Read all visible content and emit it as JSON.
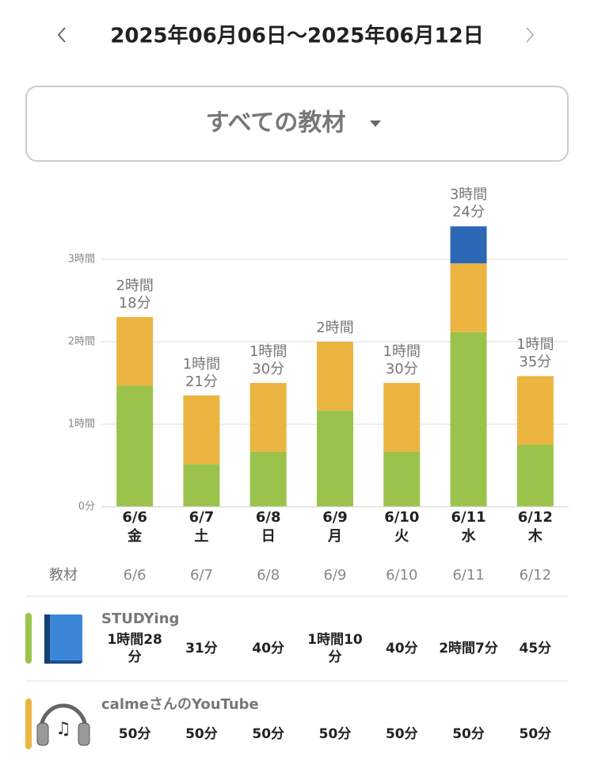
{
  "header": {
    "title": "2025年06月06日〜2025年06月12日"
  },
  "filter": {
    "label": "すべての教材"
  },
  "chart_data": {
    "type": "bar",
    "stacked": true,
    "categories": [
      "6/6",
      "6/7",
      "6/8",
      "6/9",
      "6/10",
      "6/11",
      "6/12"
    ],
    "weekdays": [
      "金",
      "土",
      "日",
      "月",
      "火",
      "水",
      "木"
    ],
    "ylim": [
      0,
      240
    ],
    "yticks": [
      {
        "value": 0,
        "label": "0分"
      },
      {
        "value": 60,
        "label": "1時間"
      },
      {
        "value": 120,
        "label": "2時間"
      },
      {
        "value": 180,
        "label": "3時間"
      }
    ],
    "grid": true,
    "series": [
      {
        "name": "STUDYing",
        "color": "#9bc34b",
        "values": [
          88,
          31,
          40,
          70,
          40,
          127,
          45
        ],
        "value_labels": [
          "1時間28分",
          "31分",
          "40分",
          "1時間10分",
          "40分",
          "2時間7分",
          "45分"
        ]
      },
      {
        "name": "calmeさんのYouTube",
        "color": "#ecb441",
        "values": [
          50,
          50,
          50,
          50,
          50,
          50,
          50
        ],
        "value_labels": [
          "50分",
          "50分",
          "50分",
          "50分",
          "50分",
          "50分",
          "50分"
        ]
      },
      {
        "color": "#2b67b4",
        "values": [
          null,
          null,
          null,
          null,
          null,
          27,
          null
        ]
      }
    ],
    "totals": {
      "values": [
        138,
        81,
        90,
        120,
        90,
        204,
        95
      ],
      "value_labels": [
        "2時間18分",
        "1時間21分",
        "1時間30分",
        "2時間",
        "1時間30分",
        "3時間24分",
        "1時間35分"
      ]
    }
  },
  "table": {
    "header": "教材"
  }
}
